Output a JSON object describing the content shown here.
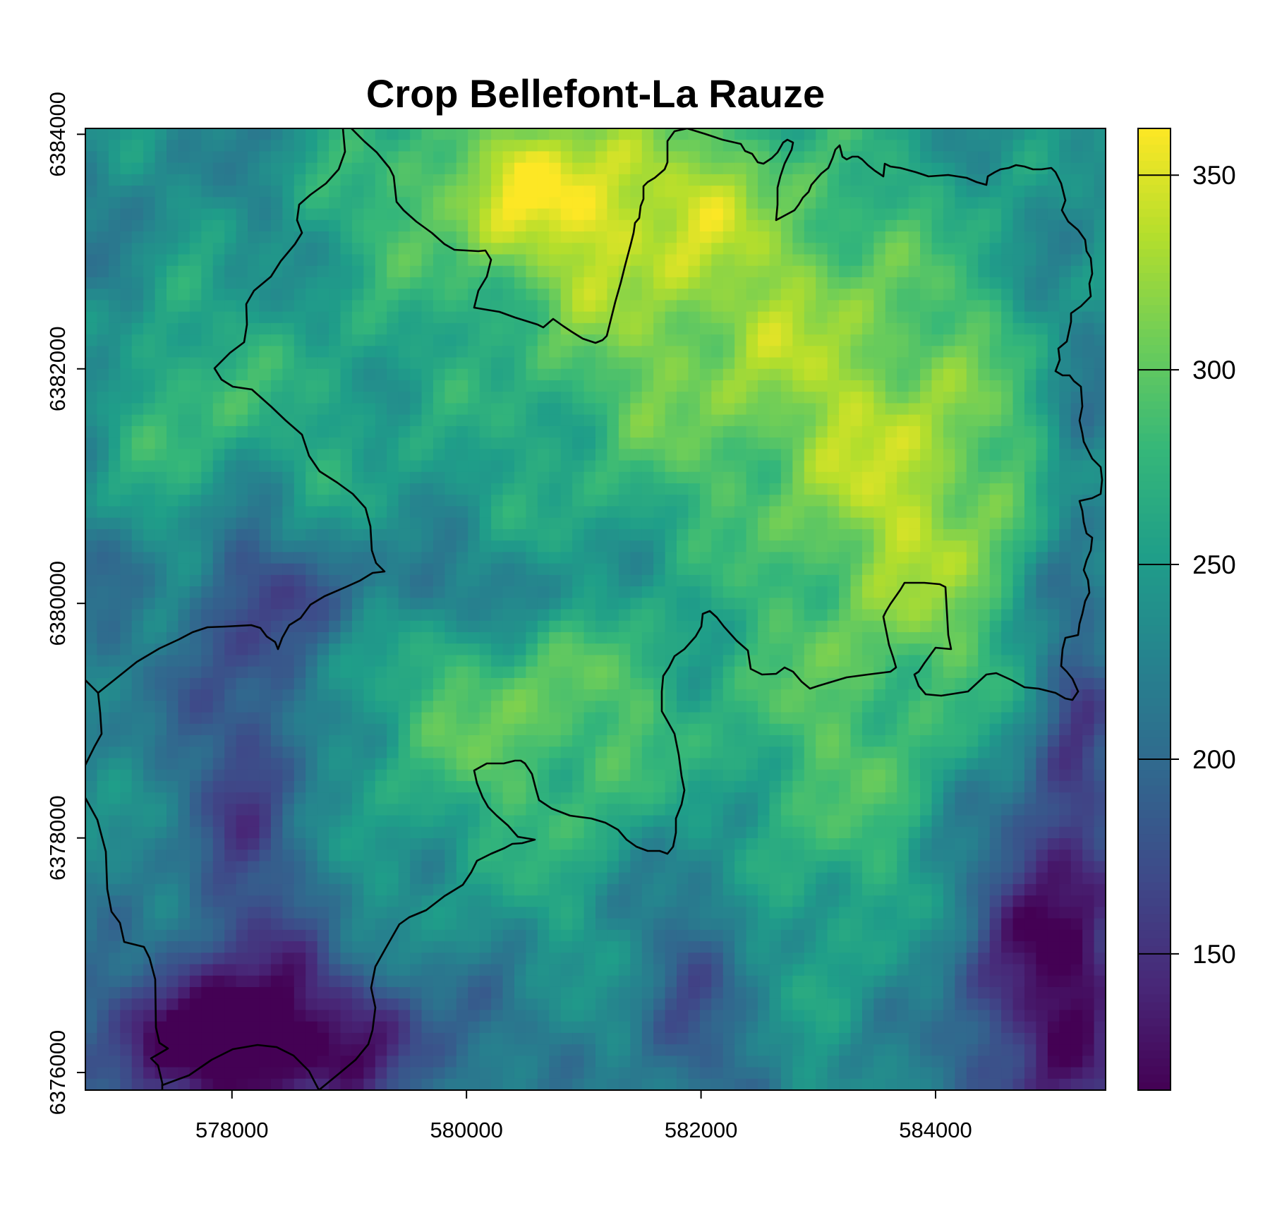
{
  "map": {
    "title": "Crop Bellefont-La Rauze",
    "x_axis": {
      "range": [
        576750,
        585450
      ],
      "ticks": [
        {
          "value": 578000,
          "label": "578000"
        },
        {
          "value": 580000,
          "label": "580000"
        },
        {
          "value": 582000,
          "label": "582000"
        },
        {
          "value": 584000,
          "label": "584000"
        }
      ]
    },
    "y_axis": {
      "range": [
        6375850,
        6384050
      ],
      "ticks": [
        {
          "value": 6376000,
          "label": "6376000"
        },
        {
          "value": 6378000,
          "label": "6378000"
        },
        {
          "value": 6380000,
          "label": "6380000"
        },
        {
          "value": 6382000,
          "label": "6382000"
        },
        {
          "value": 6384000,
          "label": "6384000"
        }
      ]
    },
    "legend": {
      "range": [
        115,
        362
      ],
      "palette": "viridis",
      "colors": [
        "#440154",
        "#482878",
        "#3E4A89",
        "#31688E",
        "#26828E",
        "#1F9E89",
        "#35B779",
        "#6DCD59",
        "#B4DE2C",
        "#FDE725"
      ],
      "ticks": [
        {
          "value": 150,
          "label": "150"
        },
        {
          "value": 200,
          "label": "200"
        },
        {
          "value": 250,
          "label": "250"
        },
        {
          "value": 300,
          "label": "300"
        },
        {
          "value": 350,
          "label": "350"
        }
      ]
    }
  }
}
